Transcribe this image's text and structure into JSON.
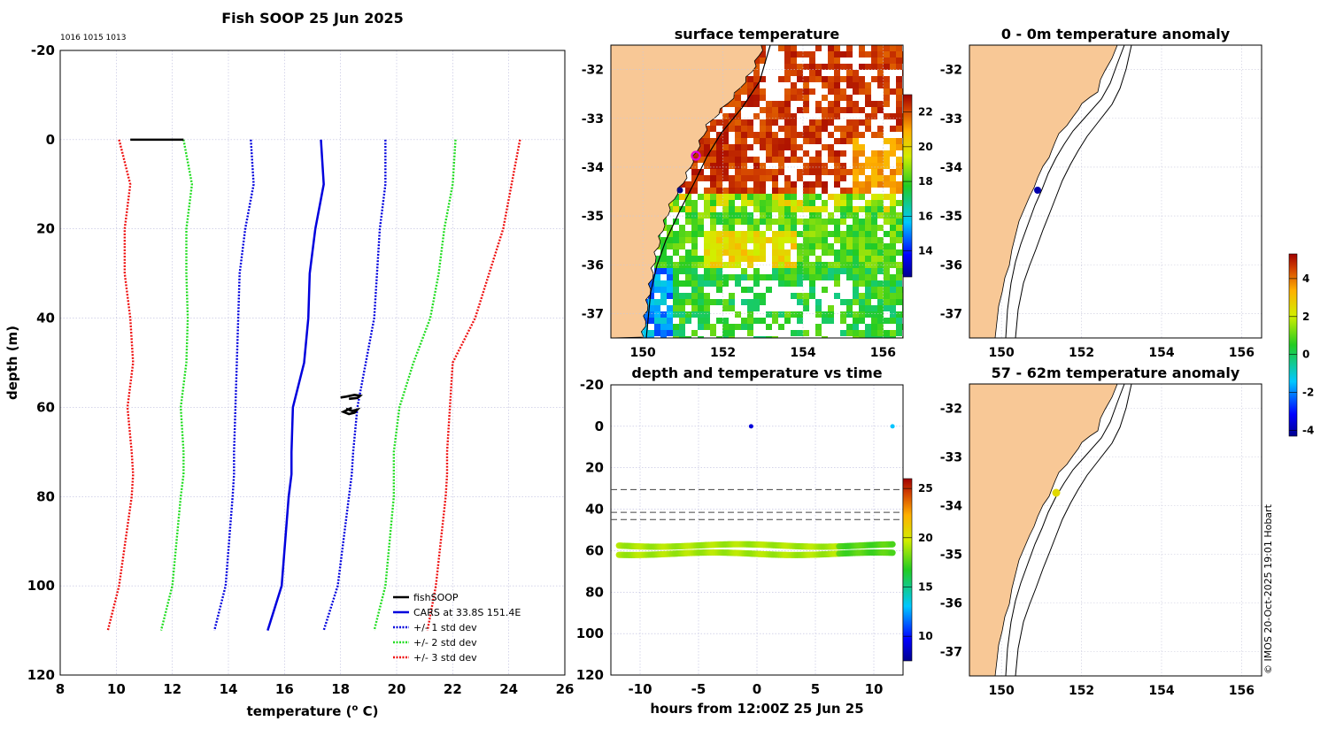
{
  "colors": {
    "land": "#f8c896",
    "cars": "#0000dd",
    "sd1": "#0000dd",
    "sd2": "#22dd22",
    "sd3": "#ee1111",
    "fish": "#000000",
    "grid": "#bbbbdd"
  },
  "chart_data": [
    {
      "id": "profile",
      "type": "line",
      "title": "Fish SOOP 25 Jun 2025",
      "note": "1016 1015 1013",
      "xlabel": "temperature (",
      "xlabel_sup": "o",
      "xlabel_end": " C)",
      "ylabel": "depth (m)",
      "xlim": [
        8,
        26
      ],
      "ylim": [
        -20,
        120
      ],
      "xticks": [
        "8",
        "10",
        "12",
        "14",
        "16",
        "18",
        "20",
        "22",
        "24",
        "26"
      ],
      "yticks": [
        "-20",
        "0",
        "20",
        "40",
        "60",
        "80",
        "100",
        "120"
      ],
      "legend": [
        "fishSOOP",
        "CARS at 33.8S 151.4E",
        "+/- 1 std dev",
        "+/- 2 std dev",
        "+/- 3 std dev"
      ],
      "depth": [
        0,
        10,
        20,
        30,
        40,
        50,
        60,
        70,
        75,
        80,
        100,
        110
      ],
      "cars": [
        17.3,
        17.4,
        17.1,
        16.9,
        16.85,
        16.7,
        16.3,
        16.25,
        16.25,
        16.15,
        15.9,
        15.4
      ],
      "sd1_lo": [
        14.8,
        14.9,
        14.6,
        14.4,
        14.35,
        14.3,
        14.25,
        14.2,
        14.2,
        14.15,
        13.9,
        13.5
      ],
      "sd1_hi": [
        19.6,
        19.6,
        19.4,
        19.3,
        19.2,
        18.9,
        18.6,
        18.45,
        18.4,
        18.3,
        17.9,
        17.4
      ],
      "sd2_lo": [
        12.4,
        12.7,
        12.5,
        12.5,
        12.55,
        12.5,
        12.3,
        12.4,
        12.4,
        12.3,
        12.0,
        11.6
      ],
      "sd2_hi": [
        22.1,
        22.0,
        21.7,
        21.5,
        21.2,
        20.6,
        20.1,
        19.9,
        19.9,
        19.9,
        19.6,
        19.2
      ],
      "sd3_lo": [
        10.1,
        10.5,
        10.3,
        10.3,
        10.5,
        10.6,
        10.4,
        10.55,
        10.6,
        10.55,
        10.1,
        9.7
      ],
      "sd3_hi": [
        24.4,
        24.1,
        23.8,
        23.3,
        22.8,
        22.0,
        21.9,
        21.8,
        21.8,
        21.75,
        21.4,
        21.1
      ],
      "fish_surface": {
        "x": [
          10.5,
          12.4
        ],
        "depth": [
          0,
          0
        ]
      },
      "fish_deep": [
        [
          18.0,
          57.8
        ],
        [
          18.2,
          57.6
        ],
        [
          18.5,
          57.2
        ],
        [
          18.7,
          57.4
        ],
        [
          18.6,
          57.9
        ],
        [
          18.3,
          58.1
        ],
        [
          18.2,
          60.3
        ],
        [
          18.4,
          60.8
        ],
        [
          18.6,
          60.5
        ],
        [
          18.5,
          61.2
        ],
        [
          18.3,
          61.5
        ],
        [
          18.1,
          61.0
        ],
        [
          18.4,
          60.1
        ]
      ]
    },
    {
      "id": "sst_map",
      "type": "heatmap",
      "title": "surface temperature",
      "xticks": [
        "150",
        "152",
        "154",
        "156"
      ],
      "yticks": [
        "-32",
        "-33",
        "-34",
        "-35",
        "-36",
        "-37"
      ],
      "colorbar": {
        "min": 12.5,
        "max": 23,
        "ticks": [
          "14",
          "16",
          "18",
          "20",
          "22"
        ]
      },
      "markers": [
        {
          "lon": 151.35,
          "lat": -33.75,
          "kind": "ring"
        },
        {
          "lon": 150.95,
          "lat": -34.45,
          "kind": "dot"
        }
      ]
    },
    {
      "id": "depth_time",
      "type": "scatter",
      "title": "depth and temperature vs time",
      "xlabel": "hours from 12:00Z 25 Jun 25",
      "xlim": [
        -12.5,
        12.5
      ],
      "ylim": [
        -20,
        120
      ],
      "xticks": [
        "-10",
        "-5",
        "0",
        "5",
        "10"
      ],
      "yticks": [
        "-20",
        "0",
        "20",
        "40",
        "60",
        "80",
        "100",
        "120"
      ],
      "dashed_depths": [
        30.5,
        41.5,
        45
      ],
      "surface_points": [
        {
          "hour": -0.5,
          "depth": 0,
          "temp": 9
        },
        {
          "hour": 11.6,
          "depth": 0,
          "temp": 13
        }
      ],
      "bands": [
        {
          "depth": 57.5,
          "temp": 19
        },
        {
          "depth": 61.5,
          "temp": 19
        }
      ],
      "colorbar": {
        "min": 7.5,
        "max": 26,
        "ticks": [
          "10",
          "15",
          "20",
          "25"
        ]
      }
    },
    {
      "id": "anomaly_surface",
      "type": "scatter",
      "title": "0 - 0m temperature anomaly",
      "xticks": [
        "150",
        "152",
        "154",
        "156"
      ],
      "yticks": [
        "-32",
        "-33",
        "-34",
        "-35",
        "-36",
        "-37"
      ],
      "points": [
        {
          "lon": 150.95,
          "lat": -34.45,
          "anomaly": -4
        }
      ]
    },
    {
      "id": "anomaly_deep",
      "type": "scatter",
      "title": "57 - 62m temperature anomaly",
      "xticks": [
        "150",
        "152",
        "154",
        "156"
      ],
      "yticks": [
        "-32",
        "-33",
        "-34",
        "-35",
        "-36",
        "-37"
      ],
      "points": [
        {
          "lon": 151.35,
          "lat": -33.8,
          "anomaly": 2.5
        }
      ],
      "colorbar": {
        "min": -4.3,
        "max": 5.3,
        "ticks": [
          "-4",
          "-2",
          "0",
          "2",
          "4"
        ]
      }
    }
  ],
  "credit": "© IMOS 20-Oct-2025 19:01 Hobart"
}
